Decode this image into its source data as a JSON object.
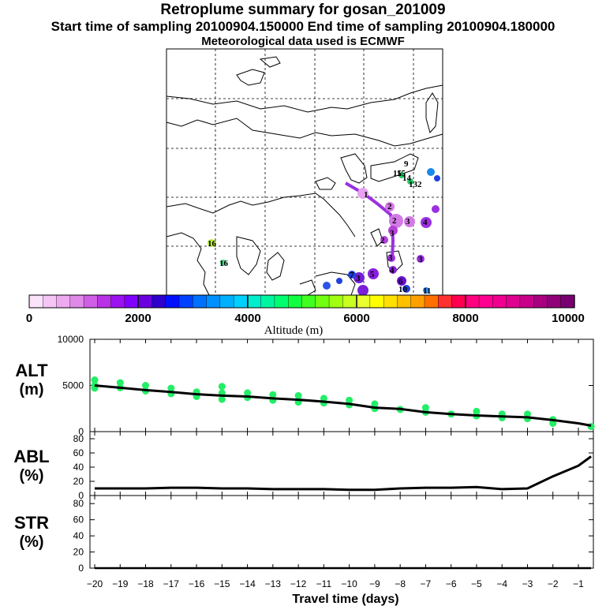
{
  "header": {
    "title": "Retroplume summary for gosan_201009",
    "sampling": "Start time of sampling 20100904.150000     End time of sampling 20100904.180000",
    "met": "Meteorological data used is ECMWF"
  },
  "colors": {
    "trajectory": "#9b30e0",
    "trajectory_start": "#e090f0",
    "alt_points": "#22ee66",
    "line": "#000000",
    "coast": "#000000"
  },
  "chart_data": [
    {
      "type": "map",
      "title": "Retroplume map",
      "legend": {
        "label": "Altitude (m)",
        "ticks": [
          "0",
          "2000",
          "4000",
          "6000",
          "8000",
          "10000"
        ],
        "range": [
          0,
          10000
        ]
      },
      "labels_on_map": [
        "9",
        "15",
        "14",
        "132",
        "1",
        "2",
        "2",
        "3",
        "3",
        "4",
        "2",
        "3",
        "3",
        "4",
        "5",
        "3",
        "6",
        "7",
        "10",
        "16",
        "15",
        "16",
        "11"
      ]
    },
    {
      "type": "line",
      "panel": "ALT",
      "ylabel_line1": "ALT",
      "ylabel_line2": "(m)",
      "ylim": [
        0,
        10000
      ],
      "yticks": [
        "10000",
        "5000",
        "0"
      ],
      "x": [
        -20,
        -19,
        -18,
        -17,
        -16,
        -15,
        -14,
        -13,
        -12,
        -11,
        -10,
        -9,
        -8,
        -7,
        -6,
        -5,
        -4,
        -3,
        -2,
        -1,
        -0.5
      ],
      "series": [
        {
          "name": "mean altitude",
          "values": [
            5000,
            4750,
            4500,
            4300,
            4050,
            3900,
            3800,
            3600,
            3450,
            3250,
            3000,
            2600,
            2450,
            2100,
            1900,
            1750,
            1650,
            1550,
            1250,
            900,
            650
          ]
        }
      ],
      "scatter_points": [
        [
          -20,
          5000
        ],
        [
          -20,
          5600
        ],
        [
          -20,
          4700
        ],
        [
          -19,
          4750
        ],
        [
          -19,
          5300
        ],
        [
          -18,
          4400
        ],
        [
          -18,
          5000
        ],
        [
          -17,
          4100
        ],
        [
          -17,
          4700
        ],
        [
          -16,
          3800
        ],
        [
          -16,
          4300
        ],
        [
          -15,
          3500
        ],
        [
          -15,
          4200
        ],
        [
          -15,
          4900
        ],
        [
          -14,
          3700
        ],
        [
          -14,
          4200
        ],
        [
          -13,
          3400
        ],
        [
          -13,
          4000
        ],
        [
          -12,
          3200
        ],
        [
          -12,
          3900
        ],
        [
          -11,
          3100
        ],
        [
          -11,
          3600
        ],
        [
          -10,
          2900
        ],
        [
          -10,
          3400
        ],
        [
          -9,
          2500
        ],
        [
          -9,
          3000
        ],
        [
          -8,
          2400
        ],
        [
          -7,
          2100
        ],
        [
          -7,
          2600
        ],
        [
          -6,
          1900
        ],
        [
          -5,
          1700
        ],
        [
          -5,
          2200
        ],
        [
          -4,
          1500
        ],
        [
          -4,
          1900
        ],
        [
          -3,
          1400
        ],
        [
          -3,
          1900
        ],
        [
          -2,
          900
        ],
        [
          -2,
          1300
        ],
        [
          -0.5,
          550
        ]
      ]
    },
    {
      "type": "line",
      "panel": "ABL",
      "ylabel_line1": "ABL",
      "ylabel_line2": "(%)",
      "ylim": [
        0,
        90
      ],
      "yticks": [
        "80",
        "60",
        "40",
        "20",
        "0"
      ],
      "x": [
        -20,
        -19,
        -18,
        -17,
        -16,
        -15,
        -14,
        -13,
        -12,
        -11,
        -10,
        -9,
        -8,
        -7,
        -6,
        -5,
        -4,
        -3,
        -2,
        -1,
        -0.5
      ],
      "series": [
        {
          "name": "ABL fraction",
          "values": [
            10,
            10,
            10,
            11,
            11,
            10,
            10,
            9,
            9,
            9,
            8,
            8,
            10,
            11,
            11,
            12,
            9,
            10,
            27,
            42,
            55
          ]
        }
      ]
    },
    {
      "type": "line",
      "panel": "STR",
      "ylabel_line1": "STR",
      "ylabel_line2": "(%)",
      "ylim": [
        0,
        90
      ],
      "yticks": [
        "80",
        "60",
        "40",
        "20",
        "0"
      ],
      "xlabel": "Travel time (days)",
      "xticklabels": [
        "−20",
        "−19",
        "−18",
        "−17",
        "−16",
        "−15",
        "−14",
        "−13",
        "−12",
        "−11",
        "−10",
        "−9",
        "−8",
        "−7",
        "−6",
        "−5",
        "−4",
        "−3",
        "−2",
        "−1"
      ],
      "x": [
        -20,
        -19,
        -18,
        -17,
        -16,
        -15,
        -14,
        -13,
        -12,
        -11,
        -10,
        -9,
        -8,
        -7,
        -6,
        -5,
        -4,
        -3,
        -2,
        -1,
        -0.5
      ],
      "series": [
        {
          "name": "stratospheric fraction",
          "values": [
            0,
            0,
            0,
            0,
            0,
            0,
            0,
            0,
            0,
            0,
            0,
            0,
            0,
            0,
            0,
            0,
            0,
            0,
            0,
            0,
            0
          ]
        }
      ]
    }
  ]
}
